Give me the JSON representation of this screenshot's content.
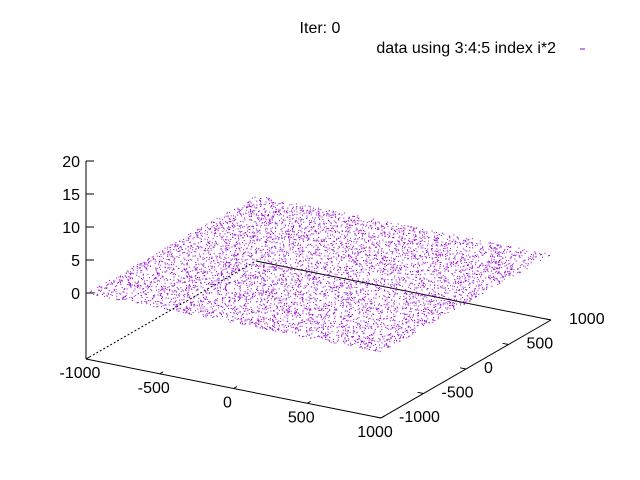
{
  "chart_data": {
    "type": "scatter",
    "title": "Iter: 0",
    "legend": {
      "label": "data using 3:4:5 index i*2",
      "placement": "top-right"
    },
    "series": [
      {
        "name": "data using 3:4:5 index i*2",
        "color": "#9400d3",
        "description_of_points": "uniform random scatter on the plane z = 0 over x in [-1000, 1000], y in [-1000, 1000]",
        "x_range": [
          -1000,
          1000
        ],
        "y_range": [
          -1000,
          1000
        ],
        "z": 0,
        "point_count": 6000
      }
    ],
    "x_axis": {
      "ticks": [
        "-1000",
        "-500",
        "0",
        "500",
        "1000"
      ],
      "range": [
        -1000,
        1000
      ]
    },
    "y_axis": {
      "ticks": [
        "-1000",
        "-500",
        "0",
        "500",
        "1000"
      ],
      "range": [
        -1000,
        1000
      ]
    },
    "z_axis": {
      "ticks": [
        "0",
        "5",
        "10",
        "15",
        "20"
      ],
      "range": [
        0,
        20
      ]
    },
    "grid": false,
    "projection": "3d"
  }
}
